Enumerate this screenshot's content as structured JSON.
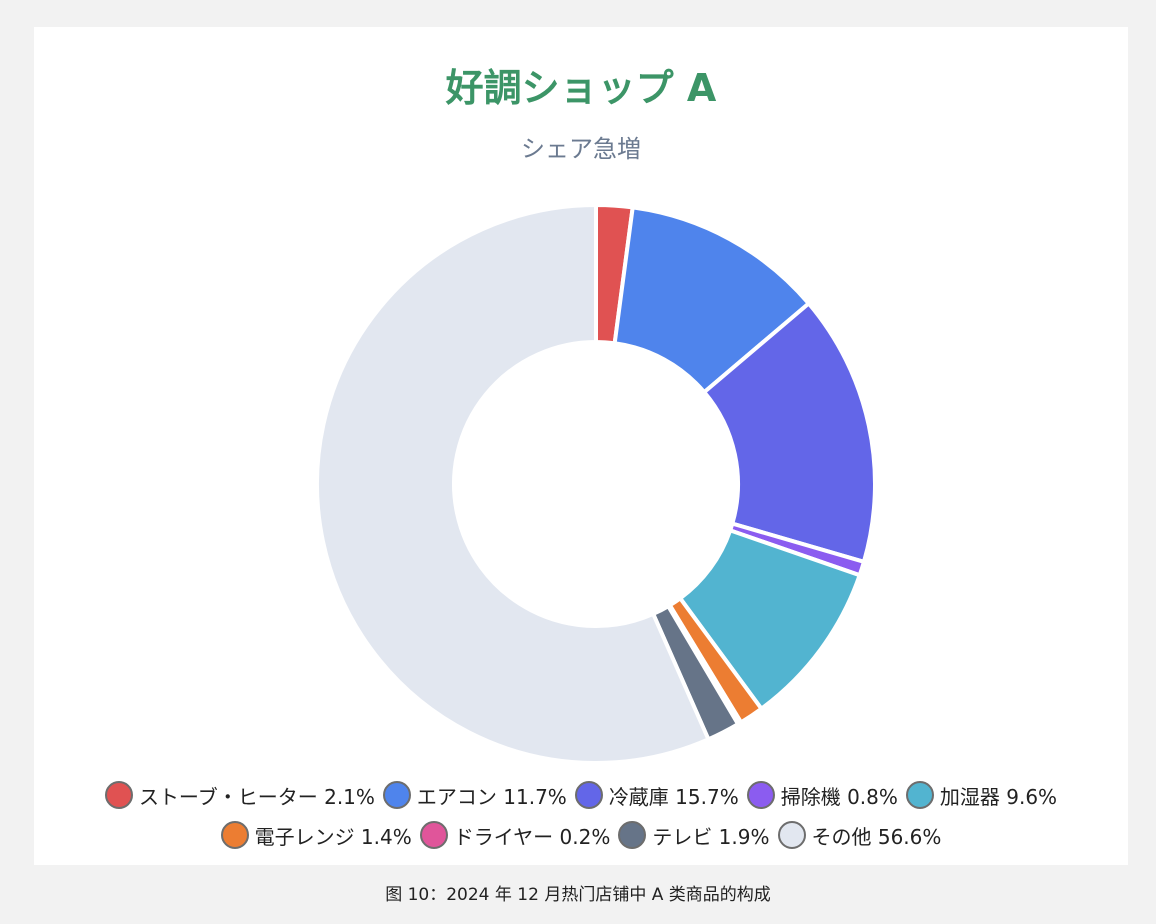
{
  "chart": {
    "title": "好調ショップ A",
    "subtitle": "シェア急増"
  },
  "caption": "图 10：2024 年 12 月热门店铺中 A 类商品的构成",
  "legend": {
    "row1": [
      {
        "label": "ストーブ・ヒーター 2.1%",
        "color": "#e05252"
      },
      {
        "label": "エアコン 11.7%",
        "color": "#4f84ec"
      },
      {
        "label": "冷蔵庫 15.7%",
        "color": "#6366e8"
      },
      {
        "label": "掃除機 0.8%",
        "color": "#8b5cf0"
      },
      {
        "label": "加湿器 9.6%",
        "color": "#52b4d0"
      }
    ],
    "row2": [
      {
        "label": "電子レンジ 1.4%",
        "color": "#ec7d32"
      },
      {
        "label": "ドライヤー 0.2%",
        "color": "#e0559a"
      },
      {
        "label": "テレビ 1.9%",
        "color": "#667488"
      },
      {
        "label": "その他 56.6%",
        "color": "#e2e7f0"
      }
    ]
  },
  "chart_data": {
    "type": "pie",
    "variant": "donut",
    "title": "好調ショップ A",
    "subtitle": "シェア急増",
    "categories": [
      "ストーブ・ヒーター",
      "エアコン",
      "冷蔵庫",
      "掃除機",
      "加湿器",
      "電子レンジ",
      "ドライヤー",
      "テレビ",
      "その他"
    ],
    "values": [
      2.1,
      11.7,
      15.7,
      0.8,
      9.6,
      1.4,
      0.2,
      1.9,
      56.6
    ],
    "colors": [
      "#e05252",
      "#4f84ec",
      "#6366e8",
      "#8b5cf0",
      "#52b4d0",
      "#ec7d32",
      "#e0559a",
      "#667488",
      "#e2e7f0"
    ],
    "unit": "%",
    "legend_position": "bottom",
    "start_angle": "top, clockwise"
  }
}
